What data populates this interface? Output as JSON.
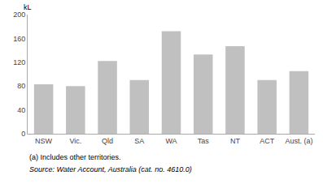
{
  "chart_data": {
    "type": "bar",
    "categories": [
      "NSW",
      "Vic.",
      "Qld",
      "SA",
      "WA",
      "Tas",
      "NT",
      "ACT",
      "Aust. (a)"
    ],
    "values": [
      83,
      80,
      122,
      90,
      172,
      133,
      147,
      90,
      105
    ],
    "color": "#c0c0c0",
    "ylabel": "kL",
    "ylim": [
      0,
      200
    ],
    "yticks": [
      0,
      40,
      80,
      120,
      160,
      200
    ],
    "grid": true,
    "annotations": [
      "(a) Includes other territories.",
      "Source: Water Account, Australia (cat. no. 4610.0)"
    ]
  }
}
